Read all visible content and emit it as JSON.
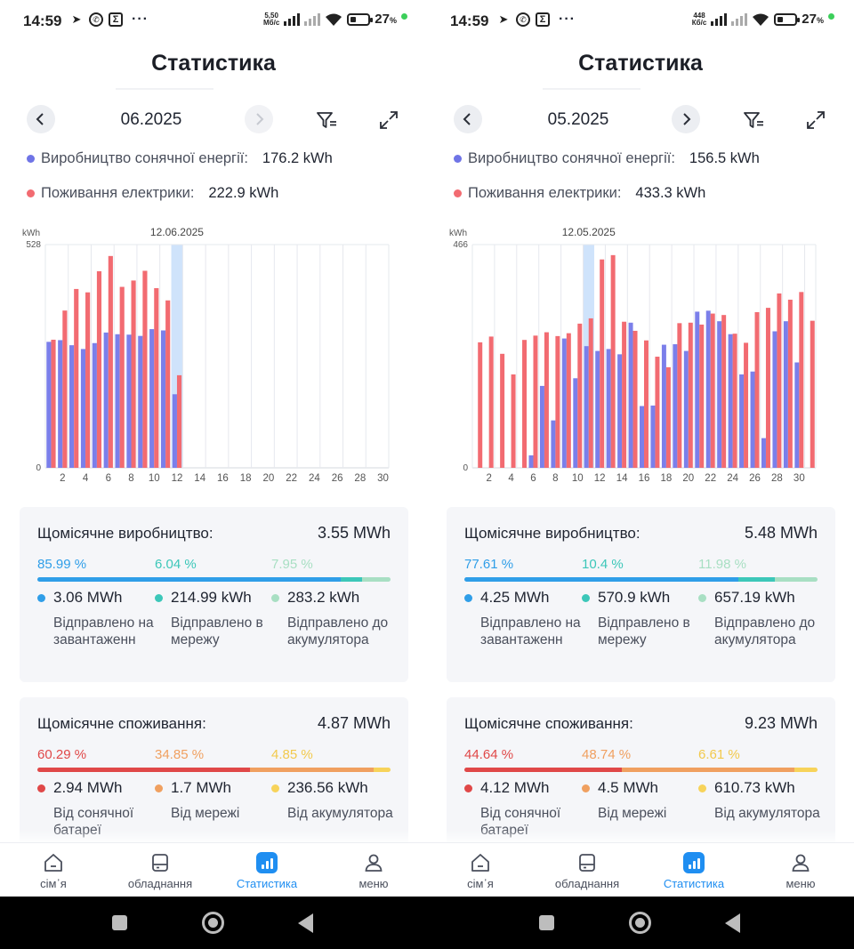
{
  "screens": [
    {
      "status": {
        "time": "14:59",
        "speed_value": "5,50",
        "speed_unit": "Мб/с",
        "battery": "27",
        "battery_unit": "%"
      },
      "title": "Статистика",
      "date": "06.2025",
      "next_enabled": false,
      "legend": {
        "production_label": "Виробництво сонячної енергії:",
        "production_value": "176.2 kWh",
        "consumption_label": "Поживання електрики:",
        "consumption_value": "222.9 kWh"
      },
      "chart_data": {
        "type": "bar",
        "unit": "kWh",
        "ymax_label": "528",
        "ymin_label": "0",
        "ylim": [
          0,
          528
        ],
        "selected_label": "12.06.2025",
        "selected_day": 12,
        "days": 30,
        "x_ticks": [
          "2",
          "4",
          "6",
          "8",
          "10",
          "12",
          "14",
          "16",
          "18",
          "20",
          "22",
          "24",
          "26",
          "28",
          "30"
        ],
        "series": [
          {
            "name": "Виробництво сонячної енергії",
            "color": "#7b7fea",
            "values": [
              298,
              302,
              290,
              281,
              295,
              320,
              316,
              315,
              312,
              328,
              325,
              174,
              null,
              null,
              null,
              null,
              null,
              null,
              null,
              null,
              null,
              null,
              null,
              null,
              null,
              null,
              null,
              null,
              null,
              null
            ]
          },
          {
            "name": "Поживання електрики",
            "color": "#f26b71",
            "values": [
              303,
              372,
              423,
              415,
              465,
              501,
              428,
              443,
              466,
              425,
              396,
              219,
              null,
              null,
              null,
              null,
              null,
              null,
              null,
              null,
              null,
              null,
              null,
              null,
              null,
              null,
              null,
              null,
              null,
              null
            ]
          }
        ]
      },
      "production_card": {
        "title": "Щомісячне виробництво:",
        "total": "3.55 MWh",
        "segments": [
          {
            "percent_label": "85.99 %",
            "fraction": 0.8599,
            "color": "#2f9ee8",
            "text_color": "#2f9ee8",
            "value": "3.06 MWh",
            "desc": "Відправлено на завантаженн"
          },
          {
            "percent_label": "6.04 %",
            "fraction": 0.0604,
            "color": "#3cc7b9",
            "text_color": "#3cc7b9",
            "value": "214.99 kWh",
            "desc": "Відправлено в мережу"
          },
          {
            "percent_label": "7.95 %",
            "fraction": 0.0795,
            "color": "#a8dfc3",
            "text_color": "#a8dfc3",
            "value": "283.2 kWh",
            "desc": "Відправлено до акумулятора"
          }
        ]
      },
      "consumption_card": {
        "title": "Щомісячне споживання:",
        "total": "4.87 MWh",
        "segments": [
          {
            "percent_label": "60.29 %",
            "fraction": 0.6029,
            "color": "#e04848",
            "text_color": "#e04848",
            "value": "2.94 MWh",
            "desc": "Від сонячної батареї"
          },
          {
            "percent_label": "34.85 %",
            "fraction": 0.3485,
            "color": "#f0a060",
            "text_color": "#f0a060",
            "value": "1.7 MWh",
            "desc": "Від мережі"
          },
          {
            "percent_label": "4.85 %",
            "fraction": 0.0485,
            "color": "#f7d35a",
            "text_color": "#f2c94c",
            "value": "236.56 kWh",
            "desc": "Від акумулятора"
          }
        ]
      },
      "nav": [
        "сім᾽я",
        "обладнання",
        "Статистика",
        "меню"
      ]
    },
    {
      "status": {
        "time": "14:59",
        "speed_value": "448",
        "speed_unit": "Кб/с",
        "battery": "27",
        "battery_unit": "%"
      },
      "title": "Статистика",
      "date": "05.2025",
      "next_enabled": true,
      "legend": {
        "production_label": "Виробництво сонячної енергії:",
        "production_value": "156.5 kWh",
        "consumption_label": "Поживання електрики:",
        "consumption_value": "433.3 kWh"
      },
      "chart_data": {
        "type": "bar",
        "unit": "kWh",
        "ymax_label": "466",
        "ymin_label": "0",
        "ylim": [
          0,
          466
        ],
        "selected_label": "12.05.2025",
        "selected_day": 11,
        "days": 31,
        "x_ticks": [
          "2",
          "4",
          "6",
          "8",
          "10",
          "12",
          "14",
          "16",
          "18",
          "20",
          "22",
          "24",
          "26",
          "28",
          "30"
        ],
        "series": [
          {
            "name": "Виробництво сонячної енергії",
            "color": "#7b7fea",
            "values": [
              0,
              0,
              0,
              0,
              0,
              26,
              171,
              99,
              270,
              187,
              254,
              244,
              248,
              237,
              303,
              129,
              130,
              257,
              258,
              244,
              326,
              328,
              306,
              279,
              195,
              201,
              62,
              285,
              306,
              220,
              0
            ]
          },
          {
            "name": "Поживання електрики",
            "color": "#f26b71",
            "values": [
              262,
              274,
              238,
              195,
              267,
              276,
              283,
              275,
              281,
              301,
              312,
              435,
              444,
              305,
              286,
              266,
              232,
              210,
              302,
              303,
              299,
              322,
              319,
              280,
              261,
              325,
              334,
              364,
              351,
              367,
              307
            ]
          }
        ]
      },
      "production_card": {
        "title": "Щомісячне виробництво:",
        "total": "5.48 MWh",
        "segments": [
          {
            "percent_label": "77.61 %",
            "fraction": 0.7761,
            "color": "#2f9ee8",
            "text_color": "#2f9ee8",
            "value": "4.25 MWh",
            "desc": "Відправлено на завантаженн"
          },
          {
            "percent_label": "10.4 %",
            "fraction": 0.104,
            "color": "#3cc7b9",
            "text_color": "#3cc7b9",
            "value": "570.9 kWh",
            "desc": "Відправлено в мережу"
          },
          {
            "percent_label": "11.98 %",
            "fraction": 0.1198,
            "color": "#a8dfc3",
            "text_color": "#a8dfc3",
            "value": "657.19 kWh",
            "desc": "Відправлено до акумулятора"
          }
        ]
      },
      "consumption_card": {
        "title": "Щомісячне споживання:",
        "total": "9.23 MWh",
        "segments": [
          {
            "percent_label": "44.64 %",
            "fraction": 0.4464,
            "color": "#e04848",
            "text_color": "#e04848",
            "value": "4.12 MWh",
            "desc": "Від сонячної батареї"
          },
          {
            "percent_label": "48.74 %",
            "fraction": 0.4874,
            "color": "#f0a060",
            "text_color": "#f0a060",
            "value": "4.5 MWh",
            "desc": "Від мережі"
          },
          {
            "percent_label": "6.61 %",
            "fraction": 0.0661,
            "color": "#f7d35a",
            "text_color": "#f2c94c",
            "value": "610.73 kWh",
            "desc": "Від акумулятора"
          }
        ]
      },
      "nav": [
        "сім᾽я",
        "обладнання",
        "Статистика",
        "меню"
      ]
    }
  ]
}
